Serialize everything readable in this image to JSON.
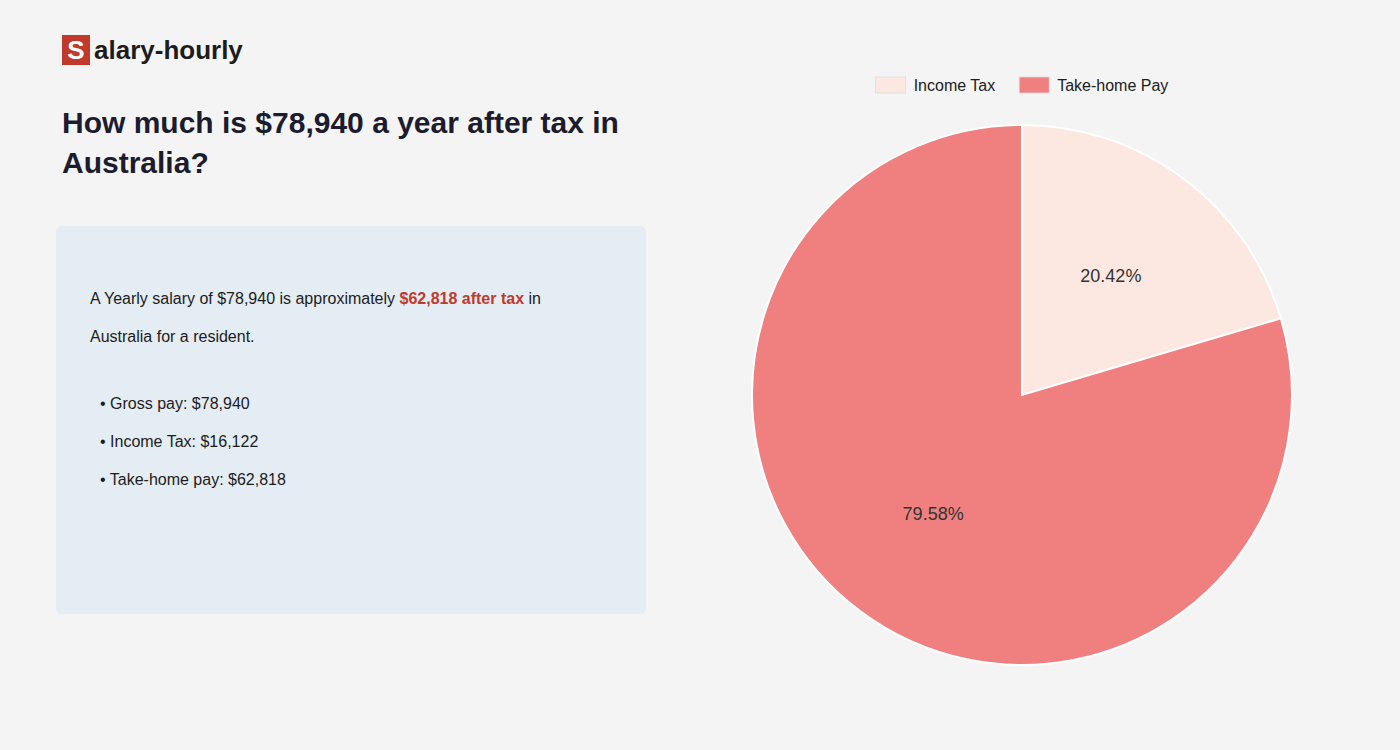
{
  "chart_data": {
    "type": "pie",
    "title": [
      "How much is $78,940 a year after tax in",
      "Australia?"
    ],
    "logo": {
      "text": [
        "S",
        "alary-hourly"
      ],
      "color": "#c0392b"
    },
    "annotations": [
      [
        {
          "text": "A Yearly salary of $78,940 is approximately "
        },
        {
          "text": "$62,818 after tax",
          "color": "#c0392b"
        },
        {
          "text": " in"
        }
      ],
      [
        {
          "text": "Australia for a resident."
        }
      ]
    ],
    "bullets": [
      "• Gross pay: $78,940",
      "• Income Tax: $16,122",
      "• Take-home pay: $62,818"
    ],
    "categories": [
      "Income Tax",
      "Take-home Pay"
    ],
    "values": [
      20.42,
      79.58
    ],
    "value_labels": [
      "20.42%",
      "79.58%"
    ],
    "colors": [
      "#fce8e0",
      "#f08080"
    ],
    "data_labels": true,
    "legend": "top"
  }
}
